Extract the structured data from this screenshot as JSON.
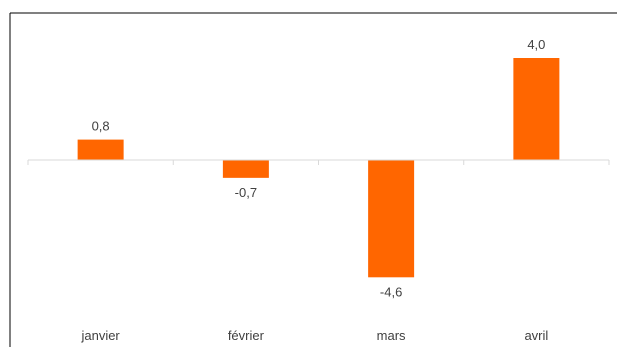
{
  "chart_data": {
    "type": "bar",
    "categories": [
      "janvier",
      "février",
      "mars",
      "avril"
    ],
    "values": [
      0.8,
      -0.7,
      -4.6,
      4.0
    ],
    "value_labels": [
      "0,8",
      "-0,7",
      "-4,6",
      "4,0"
    ],
    "title": "",
    "xlabel": "",
    "ylabel": "",
    "ylim": [
      -5,
      5
    ],
    "grid": false,
    "legend": "none",
    "bar_color": "#FF6600",
    "axis_color": "#D9D9D9"
  }
}
